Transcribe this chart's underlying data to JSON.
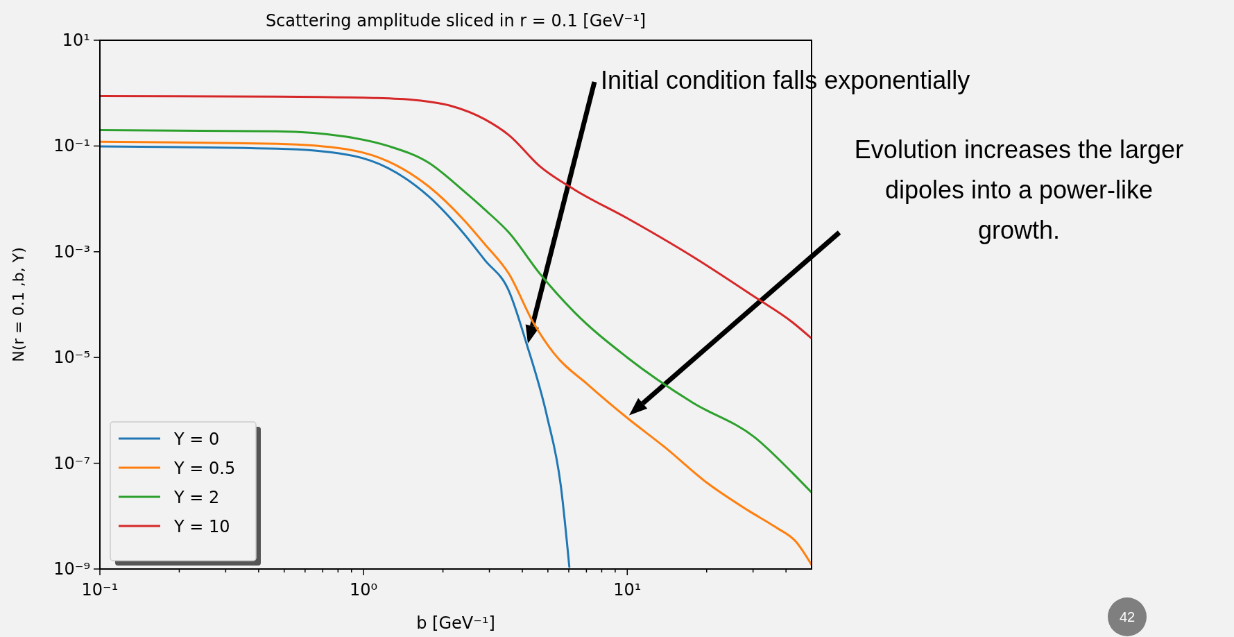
{
  "chart_data": {
    "type": "line",
    "title": "Scattering amplitude sliced in r = 0.1 [GeV⁻¹]",
    "xlabel": "b [GeV⁻¹]",
    "ylabel": "N(r = 0.1 ,b, Y)",
    "log": "xy",
    "grid": false,
    "legend": "bottom left",
    "line_style": "solid",
    "marker": "none",
    "xlim": [
      0.1,
      50
    ],
    "ylim": [
      1e-09,
      10
    ],
    "xticks": [
      {
        "value": 0.1,
        "label": "10⁻¹"
      },
      {
        "value": 0.2,
        "label": null
      },
      {
        "value": 0.3,
        "label": null
      },
      {
        "value": 0.4,
        "label": null
      },
      {
        "value": 0.5,
        "label": null
      },
      {
        "value": 0.6,
        "label": null
      },
      {
        "value": 0.7,
        "label": null
      },
      {
        "value": 0.8,
        "label": null
      },
      {
        "value": 0.9,
        "label": null
      },
      {
        "value": 1,
        "label": "10⁰"
      },
      {
        "value": 2,
        "label": null
      },
      {
        "value": 3,
        "label": null
      },
      {
        "value": 4,
        "label": null
      },
      {
        "value": 5,
        "label": null
      },
      {
        "value": 6,
        "label": null
      },
      {
        "value": 7,
        "label": null
      },
      {
        "value": 8,
        "label": null
      },
      {
        "value": 9,
        "label": null
      },
      {
        "value": 10,
        "label": "10¹"
      },
      {
        "value": 20,
        "label": null
      },
      {
        "value": 30,
        "label": null
      },
      {
        "value": 40,
        "label": null
      }
    ],
    "yticks": [
      {
        "value": 1e-09,
        "label": "10⁻⁹"
      },
      {
        "value": 1e-07,
        "label": "10⁻⁷"
      },
      {
        "value": 1e-05,
        "label": "10⁻⁵"
      },
      {
        "value": 0.001,
        "label": "10⁻³"
      },
      {
        "value": 0.1,
        "label": "10⁻¹"
      },
      {
        "value": 10,
        "label": "10¹"
      }
    ],
    "series": [
      {
        "name": "Y = 0",
        "color": "#1f77b4",
        "x": [
          0.1,
          0.47,
          0.86,
          1.24,
          1.77,
          2.4,
          2.88,
          3.56,
          4.14,
          4.96,
          5.6,
          6.03
        ],
        "values": [
          0.098,
          0.089,
          0.069,
          0.038,
          0.011,
          0.0022,
          0.0007,
          0.00018,
          1.9e-05,
          7.8e-07,
          3.7e-08,
          1.1e-09
        ]
      },
      {
        "name": "Y = 0.5",
        "color": "#ff7f0e",
        "x": [
          0.1,
          0.47,
          0.86,
          1.24,
          1.77,
          2.4,
          2.88,
          3.56,
          4.4,
          5.27,
          7.13,
          10,
          13.9,
          19.9,
          28.6,
          36.5,
          43.6,
          50
        ],
        "values": [
          0.12,
          0.11,
          0.087,
          0.051,
          0.017,
          0.004,
          0.0014,
          0.00038,
          4.6e-05,
          1.2e-05,
          3e-06,
          7.2e-07,
          2e-07,
          4.4e-08,
          1.3e-08,
          6.2e-09,
          3.3e-09,
          1.2e-09
        ]
      },
      {
        "name": "Y = 2",
        "color": "#2ca02c",
        "x": [
          0.1,
          0.47,
          0.86,
          1.24,
          1.77,
          2.4,
          2.88,
          3.56,
          4.67,
          6.3,
          10,
          17.7,
          30.4,
          42.4,
          50
        ],
        "values": [
          0.2,
          0.19,
          0.15,
          0.1,
          0.048,
          0.014,
          0.0063,
          0.0023,
          0.00038,
          7.2e-05,
          1e-05,
          1.4e-06,
          3.1e-07,
          6.5e-08,
          2.8e-08
        ]
      },
      {
        "name": "Y = 10",
        "color": "#d62728",
        "x": [
          0.1,
          0.47,
          1.09,
          1.57,
          2.13,
          2.88,
          3.56,
          4.67,
          6.3,
          10,
          17.7,
          30.4,
          42.4,
          50
        ],
        "values": [
          0.88,
          0.86,
          0.81,
          0.74,
          0.58,
          0.32,
          0.16,
          0.041,
          0.015,
          0.0043,
          0.00081,
          0.00014,
          4.6e-05,
          2.3e-05
        ]
      }
    ],
    "annotations": [
      "Initial condition falls exponentially",
      "Evolution increases the larger dipoles into a power-like growth.",
      "42"
    ]
  }
}
